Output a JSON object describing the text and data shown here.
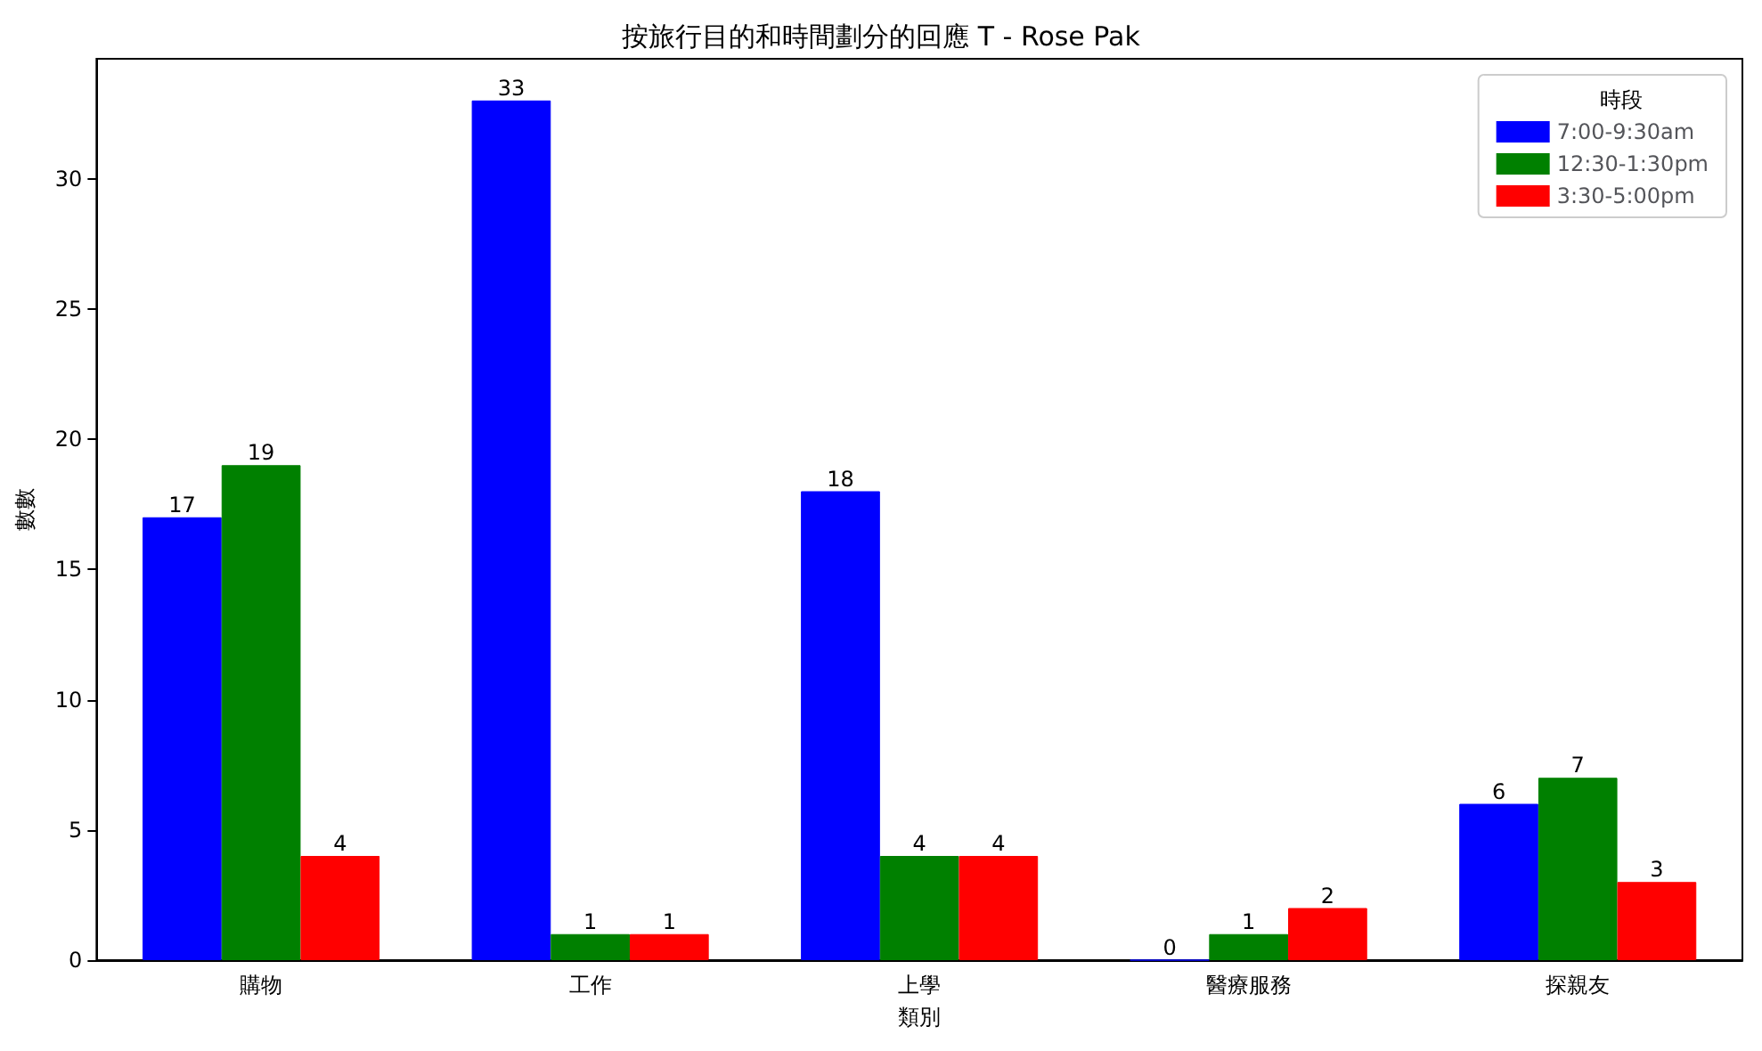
{
  "chart_data": {
    "type": "bar",
    "title": "按旅行目的和時間劃分的回應 T - Rose Pak",
    "xlabel": "類別",
    "ylabel": "數數",
    "legend_title": "時段",
    "categories": [
      "購物",
      "工作",
      "上學",
      "醫療服務",
      "探親友"
    ],
    "series": [
      {
        "name": "7:00-9:30am",
        "color": "#0000ff",
        "values": [
          17,
          33,
          18,
          0,
          6
        ]
      },
      {
        "name": "12:30-1:30pm",
        "color": "#008000",
        "values": [
          19,
          1,
          4,
          1,
          7
        ]
      },
      {
        "name": "3:30-5:00pm",
        "color": "#ff0000",
        "values": [
          4,
          1,
          4,
          2,
          3
        ]
      }
    ],
    "ylim": [
      0,
      34.6
    ],
    "yticks": [
      0,
      5,
      10,
      15,
      20,
      25,
      30
    ],
    "data_labels": true,
    "legend": "top right",
    "grid": false
  }
}
